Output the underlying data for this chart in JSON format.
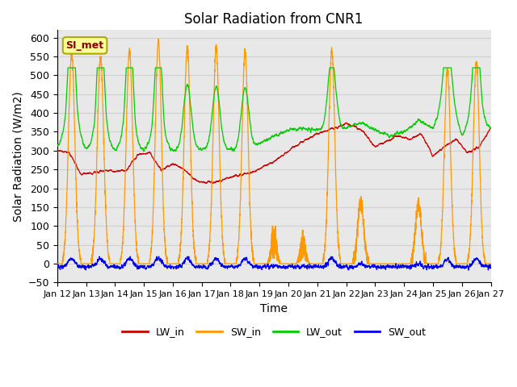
{
  "title": "Solar Radiation from CNR1",
  "xlabel": "Time",
  "ylabel": "Solar Radiation (W/m2)",
  "ylim": [
    -50,
    620
  ],
  "yticks": [
    -50,
    0,
    50,
    100,
    150,
    200,
    250,
    300,
    350,
    400,
    450,
    500,
    550,
    600
  ],
  "xtick_labels": [
    "Jan 12",
    "Jan 13",
    "Jan 14",
    "Jan 15",
    "Jan 16",
    "Jan 17",
    "Jan 18",
    "Jan 19",
    "Jan 20",
    "Jan 21",
    "Jan 22",
    "Jan 23",
    "Jan 24",
    "Jan 25",
    "Jan 26",
    "Jan 27"
  ],
  "legend_labels": [
    "LW_in",
    "SW_in",
    "LW_out",
    "SW_out"
  ],
  "line_colors": [
    "#cc0000",
    "#ff9900",
    "#00cc00",
    "#0000ee"
  ],
  "station_label": "SI_met",
  "n_days": 15,
  "points_per_day": 288,
  "background_color": "#ffffff",
  "grid_color": "#cccccc",
  "plot_bg_color": "#e8e8e8"
}
